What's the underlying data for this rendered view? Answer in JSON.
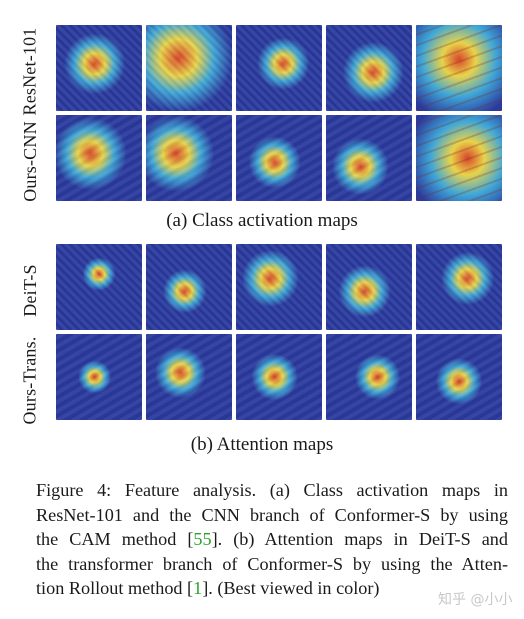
{
  "figure": {
    "row_labels": {
      "resnet": "ResNet-101",
      "ours_cnn": "Ours-CNN",
      "deit": "DeiT-S",
      "ours_trans": "Ours-Trans."
    },
    "sublabel_a": "(a) Class activation maps",
    "sublabel_b": "(b) Attention maps",
    "colors": {
      "cold": "#2b3a9e",
      "cool": "#3fa7d8",
      "warm": "#e8d34a",
      "hot": "#d9452b"
    }
  },
  "caption": {
    "l1": "Figure 4: Feature analysis. (a) Class activation maps in",
    "l2": "ResNet-101 and the CNN branch of Conformer-S by using",
    "l3a": "the CAM method [",
    "ref1": "55",
    "l3b": "]. (b) Attention maps in DeiT-S and",
    "l4": "the transformer branch of Conformer-S by using the Atten-",
    "l5a": "tion Rollout method [",
    "ref2": "1",
    "l5b": "]. (Best viewed in color)"
  },
  "watermark": "知乎 @小小"
}
